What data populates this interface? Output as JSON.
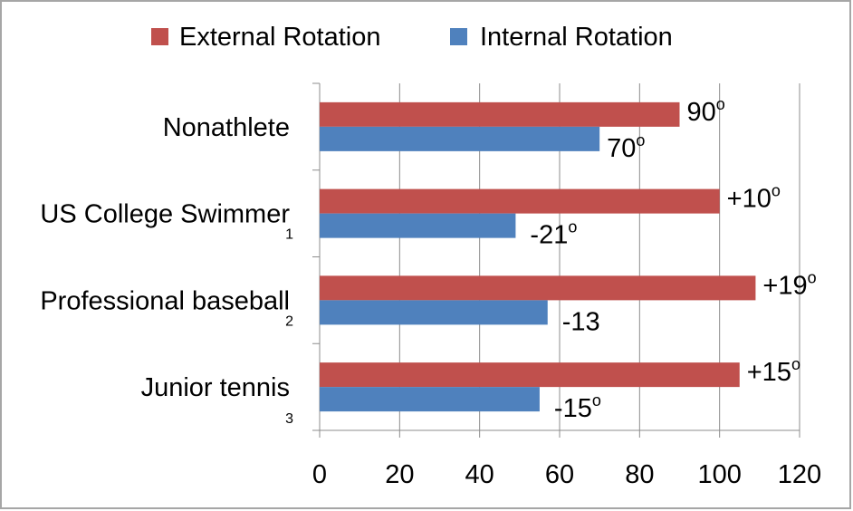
{
  "chart_data": {
    "type": "bar",
    "orientation": "horizontal",
    "title": "",
    "xlabel": "",
    "ylabel": "",
    "xlim": [
      0,
      120
    ],
    "x_ticks": [
      "0",
      "20",
      "40",
      "60",
      "80",
      "100",
      "120"
    ],
    "grid": "vertical",
    "legend_position": "top",
    "categories": [
      {
        "label": "Nonathlete",
        "sub": ""
      },
      {
        "label": "US College Swimmer",
        "sub": "1"
      },
      {
        "label": "Professional baseball",
        "sub": "2"
      },
      {
        "label": "Junior tennis",
        "sub": "3"
      }
    ],
    "series": [
      {
        "name": "External Rotation",
        "color": "#c0504d",
        "values": [
          90,
          100,
          109,
          105
        ],
        "data_labels": [
          {
            "text": "90",
            "sup": "o"
          },
          {
            "text": "+10",
            "sup": "o"
          },
          {
            "text": "+19",
            "sup": "o"
          },
          {
            "text": "+15",
            "sup": "o"
          }
        ]
      },
      {
        "name": "Internal Rotation",
        "color": "#4f81bd",
        "values": [
          70,
          49,
          57,
          55
        ],
        "data_labels": [
          {
            "text": "70",
            "sup": "o"
          },
          {
            "text": "-21",
            "sup": "o"
          },
          {
            "text": "-13",
            "sup": ""
          },
          {
            "text": "-15",
            "sup": "o"
          }
        ]
      }
    ],
    "colors": {
      "grid": "#8c8c8c",
      "axis": "#8c8c8c",
      "frame": "#a6a6a6"
    }
  }
}
